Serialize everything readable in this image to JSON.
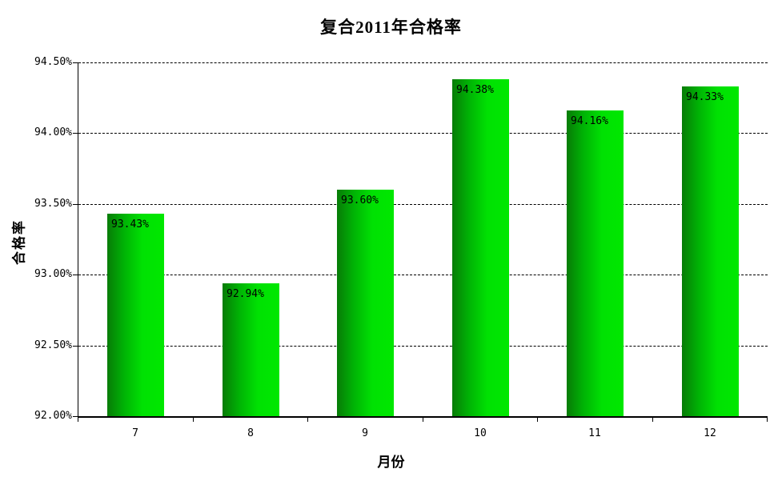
{
  "chart_data": {
    "type": "bar",
    "title": "复合2011年合格率",
    "xlabel": "月份",
    "ylabel": "合格率",
    "categories": [
      "7",
      "8",
      "9",
      "10",
      "11",
      "12"
    ],
    "values": [
      93.43,
      92.94,
      93.6,
      94.38,
      94.16,
      94.33
    ],
    "value_labels": [
      "93.43%",
      "92.94%",
      "93.60%",
      "94.38%",
      "94.16%",
      "94.33%"
    ],
    "ylim": [
      92.0,
      94.5
    ],
    "ytick_values": [
      92.0,
      92.5,
      93.0,
      93.5,
      94.0,
      94.5
    ],
    "ytick_labels": [
      "92.00%",
      "92.50%",
      "93.00%",
      "93.50%",
      "94.00%",
      "94.50%"
    ],
    "grid": "horizontal-dashed",
    "legend": "none",
    "background": "#ffffff",
    "bar_gradient": [
      "#077c07",
      "#00e800"
    ],
    "axis_color": "#000000"
  }
}
